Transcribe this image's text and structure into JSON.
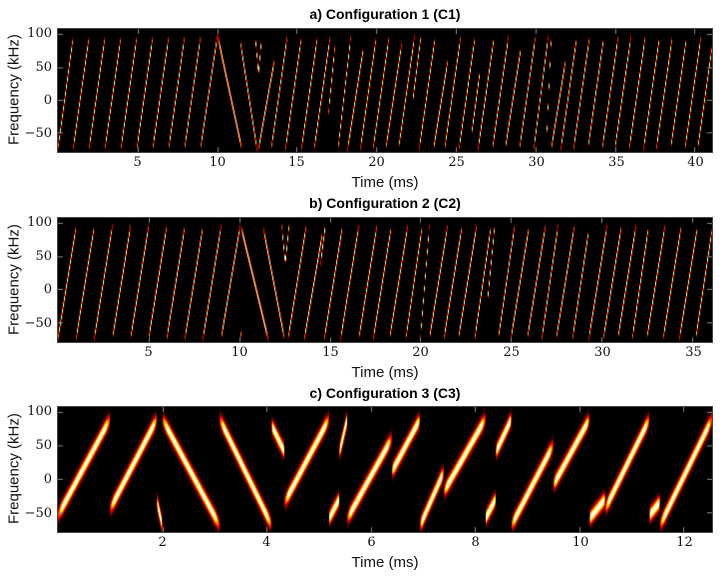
{
  "figure": {
    "panels": [
      {
        "id": "a",
        "title": "a) Configuration 1 (C1)",
        "xlabel": "Time (ms)",
        "ylabel": "Frequency (kHz)"
      },
      {
        "id": "b",
        "title": "b) Configuration 2 (C2)",
        "xlabel": "Time (ms)",
        "ylabel": "Frequency (kHz)"
      },
      {
        "id": "c",
        "title": "c) Configuration 3 (C3)",
        "xlabel": "Time (ms)",
        "ylabel": "Frequency (kHz)"
      }
    ]
  },
  "chart_data": [
    {
      "type": "heatmap",
      "title": "a) Configuration 1 (C1)",
      "xlabel": "Time (ms)",
      "ylabel": "Frequency (kHz)",
      "xlim": [
        0,
        41.1
      ],
      "ylim": [
        -80,
        108
      ],
      "xticks": [
        5,
        10,
        15,
        20,
        25,
        30,
        35,
        40
      ],
      "yticks": [
        100,
        50,
        0,
        -50
      ],
      "colormap": "hot",
      "grid": false,
      "chirp_width_kHz": 3.2,
      "chirps": [
        [
          0.0,
          -75,
          0.95,
          95
        ],
        [
          0.95,
          -75,
          1.95,
          95
        ],
        [
          1.95,
          -75,
          2.95,
          95
        ],
        [
          2.95,
          -75,
          3.95,
          95
        ],
        [
          3.95,
          -75,
          4.95,
          95
        ],
        [
          4.95,
          -75,
          5.95,
          95
        ],
        [
          5.95,
          -75,
          6.95,
          95
        ],
        [
          6.95,
          -75,
          7.95,
          95
        ],
        [
          7.95,
          -75,
          8.95,
          95
        ],
        [
          8.95,
          -75,
          10.0,
          95
        ],
        [
          10.0,
          -40,
          10.05,
          -70
        ],
        [
          10.05,
          95,
          11.55,
          -75
        ],
        [
          11.45,
          90,
          12.5,
          -75
        ],
        [
          12.4,
          95,
          12.6,
          40
        ],
        [
          12.6,
          40,
          12.8,
          95
        ],
        [
          12.6,
          -75,
          13.6,
          60
        ],
        [
          13.4,
          -75,
          14.4,
          95
        ],
        [
          14.3,
          -75,
          15.3,
          95
        ],
        [
          15.3,
          -75,
          16.3,
          95
        ],
        [
          16.1,
          -75,
          17.1,
          95
        ],
        [
          17.0,
          -20,
          17.4,
          80
        ],
        [
          17.6,
          -75,
          18.4,
          95
        ],
        [
          18.2,
          -75,
          19.2,
          80
        ],
        [
          19.0,
          -75,
          20.0,
          95
        ],
        [
          19.8,
          -75,
          20.8,
          95
        ],
        [
          20.6,
          -75,
          21.6,
          85
        ],
        [
          21.4,
          -75,
          22.4,
          95
        ],
        [
          22.3,
          0,
          22.8,
          95
        ],
        [
          22.7,
          -75,
          23.7,
          95
        ],
        [
          23.6,
          -75,
          24.5,
          60
        ],
        [
          24.3,
          -75,
          25.3,
          95
        ],
        [
          25.2,
          -75,
          26.2,
          95
        ],
        [
          26.0,
          -50,
          26.5,
          40
        ],
        [
          26.4,
          -75,
          27.4,
          95
        ],
        [
          27.3,
          -75,
          28.3,
          95
        ],
        [
          28.1,
          -75,
          29.1,
          80
        ],
        [
          29.0,
          -75,
          30.0,
          95
        ],
        [
          29.9,
          -75,
          30.8,
          95
        ],
        [
          30.7,
          -60,
          31.0,
          95
        ],
        [
          31.0,
          -75,
          31.9,
          60
        ],
        [
          31.6,
          -75,
          32.6,
          95
        ],
        [
          32.4,
          -75,
          33.4,
          95
        ],
        [
          33.3,
          -75,
          34.3,
          95
        ],
        [
          34.2,
          -75,
          35.2,
          95
        ],
        [
          35.0,
          -75,
          36.0,
          95
        ],
        [
          35.9,
          -75,
          36.9,
          95
        ],
        [
          36.8,
          -75,
          37.8,
          95
        ],
        [
          37.6,
          -75,
          38.6,
          95
        ],
        [
          38.5,
          -75,
          39.5,
          95
        ],
        [
          39.4,
          -75,
          40.4,
          95
        ],
        [
          40.2,
          -75,
          41.1,
          80
        ]
      ]
    },
    {
      "type": "heatmap",
      "title": "b) Configuration 2 (C2)",
      "xlabel": "Time (ms)",
      "ylabel": "Frequency (kHz)",
      "xlim": [
        0,
        36.1
      ],
      "ylim": [
        -80,
        108
      ],
      "xticks": [
        5,
        10,
        15,
        20,
        25,
        30,
        35
      ],
      "yticks": [
        100,
        50,
        0,
        -50
      ],
      "colormap": "hot",
      "grid": false,
      "chirp_width_kHz": 3.2,
      "chirps": [
        [
          0.0,
          -75,
          1.0,
          95
        ],
        [
          1.0,
          -75,
          2.0,
          95
        ],
        [
          2.0,
          -75,
          3.0,
          95
        ],
        [
          3.0,
          -75,
          4.0,
          95
        ],
        [
          4.0,
          -75,
          5.0,
          95
        ],
        [
          5.0,
          -75,
          6.0,
          95
        ],
        [
          6.0,
          -75,
          7.0,
          95
        ],
        [
          7.0,
          -75,
          8.0,
          95
        ],
        [
          8.0,
          -75,
          9.0,
          95
        ],
        [
          9.0,
          -75,
          10.05,
          95
        ],
        [
          10.05,
          -30,
          10.1,
          -70
        ],
        [
          10.1,
          95,
          11.6,
          -75
        ],
        [
          11.35,
          90,
          12.5,
          -75
        ],
        [
          12.35,
          95,
          12.55,
          40
        ],
        [
          12.55,
          40,
          12.75,
          95
        ],
        [
          12.7,
          -75,
          13.7,
          95
        ],
        [
          13.6,
          -75,
          14.6,
          85
        ],
        [
          14.5,
          40,
          14.75,
          95
        ],
        [
          14.7,
          -75,
          15.7,
          95
        ],
        [
          15.6,
          -75,
          16.6,
          95
        ],
        [
          16.6,
          -75,
          17.6,
          95
        ],
        [
          17.4,
          -75,
          18.4,
          95
        ],
        [
          18.3,
          -75,
          19.3,
          95
        ],
        [
          19.2,
          -75,
          20.1,
          95
        ],
        [
          20.0,
          -75,
          20.5,
          95
        ],
        [
          20.5,
          -75,
          21.5,
          95
        ],
        [
          21.3,
          -75,
          22.3,
          95
        ],
        [
          22.1,
          -75,
          23.1,
          95
        ],
        [
          23.0,
          -75,
          23.9,
          95
        ],
        [
          23.7,
          -20,
          24.1,
          95
        ],
        [
          24.3,
          -75,
          25.2,
          95
        ],
        [
          25.0,
          -75,
          26.0,
          95
        ],
        [
          25.9,
          -75,
          26.9,
          95
        ],
        [
          26.7,
          -75,
          27.6,
          95
        ],
        [
          27.5,
          -75,
          28.5,
          95
        ],
        [
          28.4,
          -75,
          29.3,
          90
        ],
        [
          29.3,
          -75,
          30.3,
          95
        ],
        [
          30.1,
          -75,
          31.1,
          95
        ],
        [
          30.9,
          -75,
          31.9,
          95
        ],
        [
          31.7,
          -75,
          32.6,
          95
        ],
        [
          32.5,
          -75,
          33.5,
          95
        ],
        [
          33.4,
          -75,
          34.4,
          95
        ],
        [
          34.3,
          -75,
          35.3,
          95
        ],
        [
          35.2,
          -75,
          36.1,
          90
        ]
      ]
    },
    {
      "type": "heatmap",
      "title": "c) Configuration 3 (C3)",
      "xlabel": "Time (ms)",
      "ylabel": "Frequency (kHz)",
      "xlim": [
        0,
        12.55
      ],
      "ylim": [
        -80,
        108
      ],
      "xticks": [
        2,
        4,
        6,
        8,
        10,
        12
      ],
      "yticks": [
        100,
        50,
        0,
        -50
      ],
      "colormap": "hot",
      "grid": false,
      "chirp_width_kHz": 7,
      "chirps": [
        [
          0.0,
          -55,
          1.0,
          90
        ],
        [
          1.0,
          -45,
          1.9,
          90
        ],
        [
          1.9,
          -35,
          2.0,
          -70
        ],
        [
          2.0,
          90,
          3.1,
          -70
        ],
        [
          3.1,
          90,
          4.1,
          -70
        ],
        [
          4.1,
          80,
          4.35,
          40
        ],
        [
          4.35,
          -35,
          5.2,
          90
        ],
        [
          5.2,
          -60,
          5.4,
          -30
        ],
        [
          5.4,
          40,
          5.55,
          90
        ],
        [
          5.55,
          -60,
          6.4,
          60
        ],
        [
          6.4,
          10,
          6.95,
          90
        ],
        [
          6.95,
          -70,
          7.4,
          10
        ],
        [
          7.4,
          -20,
          8.2,
          90
        ],
        [
          8.2,
          -60,
          8.4,
          -30
        ],
        [
          8.4,
          40,
          8.7,
          90
        ],
        [
          8.7,
          -70,
          9.5,
          50
        ],
        [
          9.5,
          -10,
          10.2,
          90
        ],
        [
          10.2,
          -60,
          10.5,
          -30
        ],
        [
          10.5,
          -45,
          11.35,
          90
        ],
        [
          11.35,
          -55,
          11.55,
          -35
        ],
        [
          11.55,
          -70,
          12.55,
          90
        ]
      ]
    }
  ]
}
